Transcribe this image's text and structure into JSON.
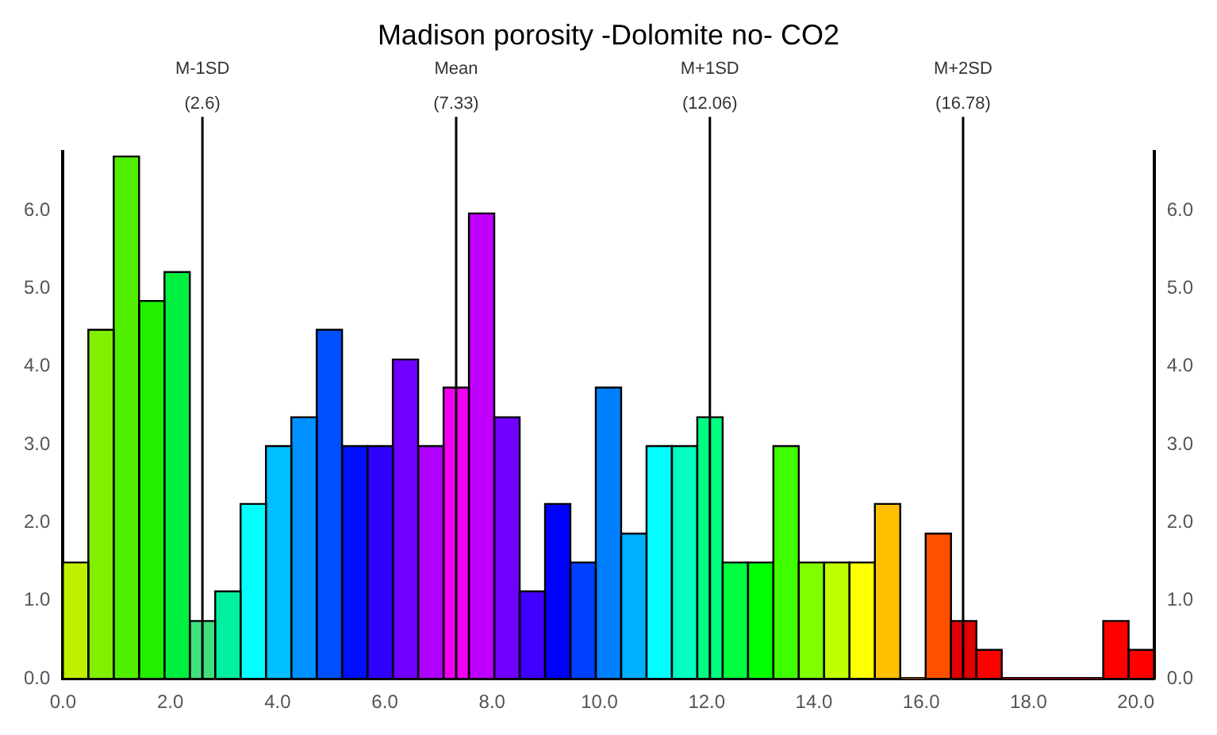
{
  "chart_data": {
    "type": "histogram",
    "title": "Madison porosity -Dolomite no- CO2",
    "bins": [
      0,
      0.473,
      0.946,
      1.419,
      1.892,
      2.365,
      2.838,
      3.311,
      3.784,
      4.257,
      4.73,
      5.203,
      5.676,
      6.149,
      6.622,
      7.095,
      7.568,
      8.041,
      8.514,
      8.987,
      9.46,
      9.933,
      10.406,
      10.879,
      11.352,
      11.825,
      12.298,
      12.771,
      13.244,
      13.717,
      14.19,
      14.663,
      15.136,
      15.609,
      16.082,
      16.555,
      17.028,
      17.501,
      17.974,
      18.447,
      18.92,
      19.393,
      19.866,
      20.339
    ],
    "values": [
      1.49,
      4.47,
      6.69,
      4.84,
      5.21,
      0.74,
      1.12,
      2.24,
      2.98,
      3.35,
      4.47,
      2.98,
      2.98,
      4.09,
      2.98,
      3.73,
      5.96,
      3.35,
      1.12,
      2.24,
      1.49,
      3.73,
      1.86,
      2.98,
      2.98,
      3.35,
      1.49,
      1.49,
      2.98,
      1.49,
      1.49,
      1.49,
      2.24,
      0,
      1.86,
      0.74,
      0.37,
      0,
      0,
      0,
      0,
      0.74,
      0.37
    ],
    "colors": [
      "#c0f000",
      "#80f000",
      "#50f000",
      "#20f000",
      "#00f040",
      "#40e080",
      "#00f0a0",
      "#00ffff",
      "#00c0ff",
      "#0090ff",
      "#0050ff",
      "#0010ff",
      "#3000ff",
      "#7000ff",
      "#b000ff",
      "#f000f0",
      "#c000ff",
      "#7000ff",
      "#4000ff",
      "#0000ff",
      "#0040ff",
      "#0080ff",
      "#00b0ff",
      "#00ffff",
      "#00ffc0",
      "#00ff80",
      "#00ff40",
      "#00ff00",
      "#40ff00",
      "#80ff00",
      "#c0ff00",
      "#ffff00",
      "#ffc000",
      "#ff8000",
      "#ff5000",
      "#e00000",
      "#ff0000",
      "#ff0000",
      "#ff0000",
      "#ff0000",
      "#ff0000",
      "#ff0000",
      "#ff0000"
    ],
    "xlim": [
      0,
      20.34
    ],
    "xticks": [
      {
        "value": 0,
        "label": "0.0"
      },
      {
        "value": 2,
        "label": "2.0"
      },
      {
        "value": 4,
        "label": "4.0"
      },
      {
        "value": 6,
        "label": "6.0"
      },
      {
        "value": 8,
        "label": "8.0"
      },
      {
        "value": 10,
        "label": "10.0"
      },
      {
        "value": 12,
        "label": "12.0"
      },
      {
        "value": 14,
        "label": "14.0"
      },
      {
        "value": 16,
        "label": "16.0"
      },
      {
        "value": 18,
        "label": "18.0"
      },
      {
        "value": 20,
        "label": "20.0"
      }
    ],
    "ylim": [
      0,
      6.75
    ],
    "yticks": [
      {
        "value": 0,
        "label": "0.0"
      },
      {
        "value": 1,
        "label": "1.0"
      },
      {
        "value": 2,
        "label": "2.0"
      },
      {
        "value": 3,
        "label": "3.0"
      },
      {
        "value": 4,
        "label": "4.0"
      },
      {
        "value": 5,
        "label": "5.0"
      },
      {
        "value": 6,
        "label": "6.0"
      }
    ],
    "y2lim": [
      0,
      6.75
    ],
    "y2ticks": [
      {
        "value": 0,
        "label": "0.0"
      },
      {
        "value": 1,
        "label": "1.0"
      },
      {
        "value": 2,
        "label": "2.0"
      },
      {
        "value": 3,
        "label": "3.0"
      },
      {
        "value": 4,
        "label": "4.0"
      },
      {
        "value": 5,
        "label": "5.0"
      },
      {
        "value": 6,
        "label": "6.0"
      }
    ],
    "ref_lines": [
      {
        "axis": "x",
        "value": 2.6,
        "label": "M-1SD\n(2.6)"
      },
      {
        "axis": "x",
        "value": 7.33,
        "label": "Mean\n(7.33)"
      },
      {
        "axis": "x",
        "value": 12.06,
        "label": "M+1SD\n(12.06)"
      },
      {
        "axis": "x",
        "value": 16.78,
        "label": "M+2SD\n(16.78)"
      }
    ],
    "grid": false,
    "legend": false
  }
}
